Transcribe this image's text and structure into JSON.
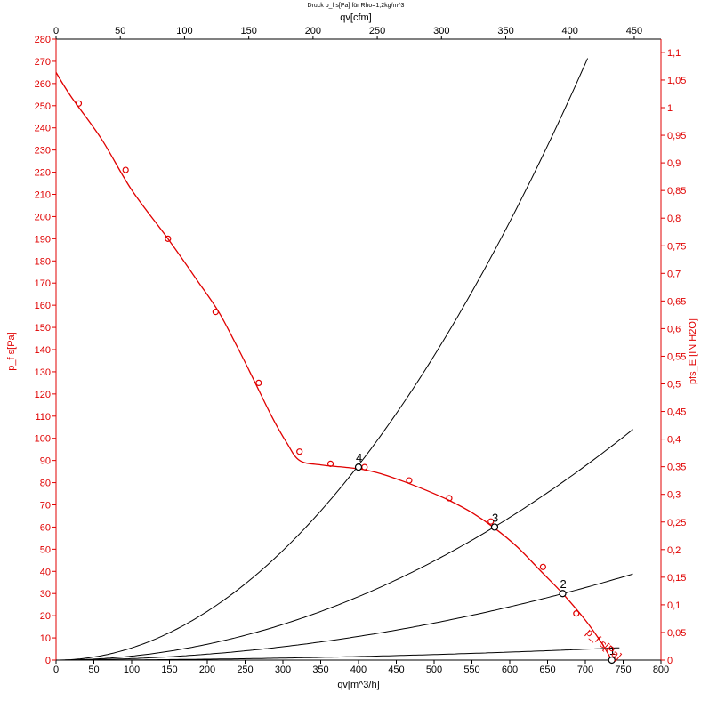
{
  "chart_data": {
    "type": "line",
    "title": "Druck p_f s[Pa] für Rho=1,2kg/m^3",
    "xlabel_bottom": "qv[m^3/h]",
    "xlabel_top": "qv[cfm]",
    "ylabel_left": "p_f s[Pa]",
    "ylabel_right": "pfs_E [IN H2O]",
    "curve_label": "p_f s[Pa]",
    "x_bottom_ticks": [
      "0",
      "50",
      "100",
      "150",
      "200",
      "250",
      "300",
      "350",
      "400",
      "450",
      "500",
      "550",
      "600",
      "650",
      "700",
      "750",
      "800"
    ],
    "x_top_ticks": [
      "0",
      "50",
      "100",
      "150",
      "200",
      "250",
      "300",
      "350",
      "400",
      "450"
    ],
    "y_left_ticks": [
      "0",
      "10",
      "20",
      "30",
      "40",
      "50",
      "60",
      "70",
      "80",
      "90",
      "100",
      "110",
      "120",
      "130",
      "140",
      "150",
      "160",
      "170",
      "180",
      "190",
      "200",
      "210",
      "220",
      "230",
      "240",
      "250",
      "260",
      "270",
      "280"
    ],
    "y_right_ticks": [
      "0",
      "0,05",
      "0,1",
      "0,15",
      "0,2",
      "0,25",
      "0,3",
      "0,35",
      "0,4",
      "0,45",
      "0,5",
      "0,55",
      "0,6",
      "0,65",
      "0,7",
      "0,75",
      "0,8",
      "0,85",
      "0,9",
      "0,95",
      "1",
      "1,05",
      "1,1"
    ],
    "xlim": [
      0,
      800
    ],
    "ylim": [
      0,
      280
    ],
    "ylim_right": [
      0,
      1.124
    ],
    "xlim_top": [
      0,
      470.8
    ],
    "grid": false,
    "colors": {
      "fan_curve": "#e00000",
      "system_curves": "#000000",
      "axes_red": "#e00000"
    },
    "fan_curve": {
      "name": "p_f s[Pa]",
      "x": [
        0,
        20,
        60,
        100,
        148,
        185,
        215,
        240,
        262,
        285,
        305,
        322,
        350,
        380,
        405,
        430,
        460,
        490,
        520,
        550,
        580,
        610,
        640,
        670,
        700,
        720,
        735
      ],
      "y": [
        265,
        254,
        235,
        212,
        190,
        172,
        157,
        141,
        126,
        110,
        98,
        90,
        88,
        87,
        86,
        84,
        80.5,
        76.5,
        72,
        66.5,
        59.5,
        51,
        40.5,
        30,
        18,
        8.5,
        0
      ]
    },
    "fan_markers": {
      "x": [
        30,
        92,
        148,
        211,
        268,
        322,
        363,
        408,
        467,
        520,
        575,
        644,
        688
      ],
      "y": [
        251,
        221,
        190,
        157,
        125,
        94,
        88.5,
        87,
        81,
        73,
        62.5,
        42,
        21
      ]
    },
    "system_curves": [
      {
        "k": 0.000549,
        "x_max": 703
      },
      {
        "k": 0.0001787,
        "x_max": 763
      },
      {
        "k": 6.67e-05,
        "x_max": 763
      },
      {
        "k": 1e-05,
        "x_max": 745
      }
    ],
    "operating_points": [
      {
        "label": "1",
        "x": 735,
        "y": 0
      },
      {
        "label": "2",
        "x": 670,
        "y": 30
      },
      {
        "label": "3",
        "x": 580,
        "y": 60
      },
      {
        "label": "4",
        "x": 400,
        "y": 87
      }
    ]
  }
}
